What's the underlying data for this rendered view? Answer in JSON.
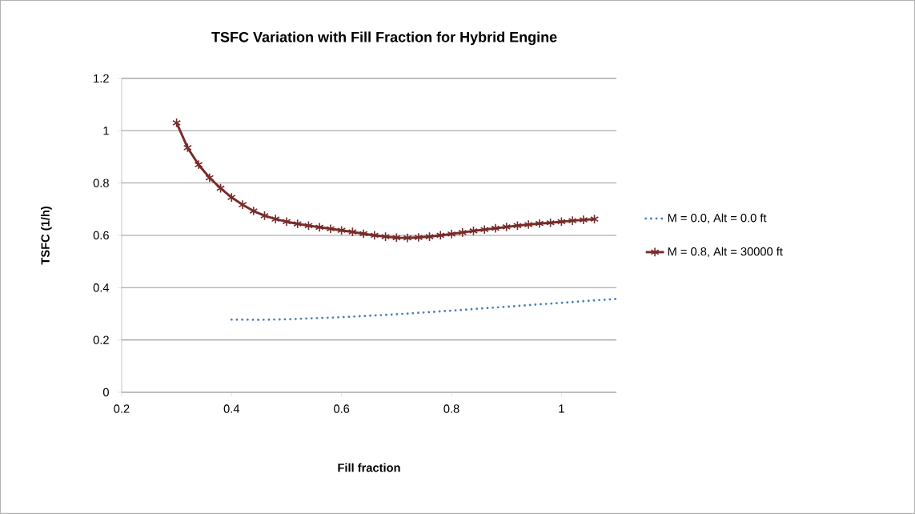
{
  "chart_data": {
    "type": "line",
    "title": "TSFC Variation with Fill Fraction for Hybrid Engine",
    "xlabel": "Fill fraction",
    "ylabel": "TSFC (1/h)",
    "xlim": [
      0.2,
      1.1
    ],
    "xticks": [
      0.2,
      0.4,
      0.6,
      0.8,
      1
    ],
    "ylim": [
      0,
      1.2
    ],
    "yticks": [
      0,
      0.2,
      0.4,
      0.6,
      0.8,
      1,
      1.2
    ],
    "grid": "y",
    "legend": "right",
    "series": [
      {
        "name": "M = 0.0, Alt = 0.0 ft",
        "color": "#4f81bd",
        "line_style": "dotted",
        "marker": "none",
        "x": [
          0.4,
          0.45,
          0.5,
          0.6,
          0.7,
          0.8,
          0.9,
          1.0,
          1.1
        ],
        "values": [
          0.278,
          0.277,
          0.279,
          0.287,
          0.298,
          0.312,
          0.327,
          0.342,
          0.357
        ]
      },
      {
        "name": "M = 0.8, Alt = 30000 ft",
        "color": "#772c2a",
        "line_style": "solid",
        "marker": "cross",
        "x": [
          0.3,
          0.32,
          0.34,
          0.36,
          0.38,
          0.4,
          0.42,
          0.44,
          0.46,
          0.48,
          0.5,
          0.52,
          0.54,
          0.56,
          0.58,
          0.6,
          0.62,
          0.64,
          0.66,
          0.68,
          0.7,
          0.72,
          0.74,
          0.76,
          0.78,
          0.8,
          0.82,
          0.84,
          0.86,
          0.88,
          0.9,
          0.92,
          0.94,
          0.96,
          0.98,
          1.0,
          1.02,
          1.04,
          1.06
        ],
        "values": [
          1.03,
          0.935,
          0.87,
          0.82,
          0.78,
          0.745,
          0.717,
          0.693,
          0.675,
          0.662,
          0.652,
          0.644,
          0.637,
          0.631,
          0.625,
          0.619,
          0.613,
          0.606,
          0.6,
          0.595,
          0.591,
          0.59,
          0.592,
          0.595,
          0.6,
          0.605,
          0.611,
          0.617,
          0.622,
          0.627,
          0.632,
          0.637,
          0.641,
          0.645,
          0.648,
          0.652,
          0.656,
          0.659,
          0.662
        ]
      }
    ]
  }
}
